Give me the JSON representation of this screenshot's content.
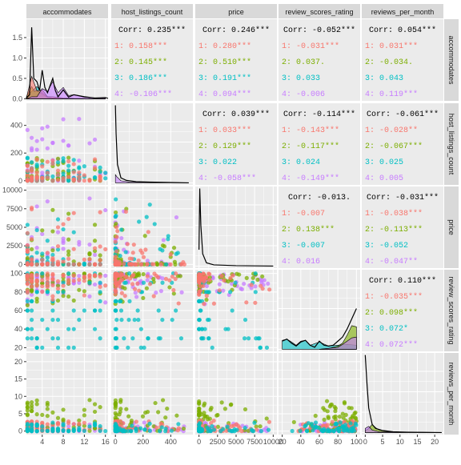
{
  "chart_data": {
    "type": "scatter",
    "title": "",
    "variables": [
      "accommodates",
      "host_listings_count",
      "price",
      "review_scores_rating",
      "reviews_per_month"
    ],
    "colors": {
      "1": "#F8766D",
      "2": "#7CAE00",
      "3": "#00BFC4",
      "4": "#C77CFF",
      "overall": "#000000",
      "panel_bg": "#EBEBEB",
      "strip_bg": "#D9D9D9"
    },
    "group_labels": [
      "1",
      "2",
      "3",
      "4"
    ],
    "axes": {
      "accommodates": {
        "range": [
          1,
          16.5
        ],
        "ticks": [
          4,
          8,
          12,
          16
        ],
        "tick_labels": [
          "4",
          "8",
          "12",
          "16"
        ]
      },
      "host_listings_count": {
        "range": [
          -30,
          560
        ],
        "ticks": [
          0,
          200,
          400
        ],
        "tick_labels": [
          "0",
          "200",
          "400"
        ]
      },
      "price": {
        "range": [
          -500,
          10500
        ],
        "ticks": [
          0,
          2500,
          5000,
          7500,
          10000
        ],
        "tick_labels": [
          "0",
          "2500",
          "5000",
          "7500",
          "10000"
        ]
      },
      "review_scores_rating": {
        "range": [
          16,
          104
        ],
        "ticks": [
          20,
          40,
          60,
          80,
          100
        ],
        "tick_labels": [
          "20",
          "40",
          "60",
          "80",
          "100"
        ]
      },
      "reviews_per_month": {
        "range": [
          -1,
          22.5
        ],
        "ticks": [
          0,
          5,
          10,
          15,
          20
        ],
        "tick_labels": [
          "0",
          "5",
          "10",
          "15",
          "20"
        ]
      },
      "density_y": {
        "range": [
          -0.05,
          1.95
        ],
        "ticks": [
          0,
          0.5,
          1.0,
          1.5
        ],
        "tick_labels": [
          "0.0",
          "0.5",
          "1.0",
          "1.5"
        ]
      }
    },
    "correlations": [
      {
        "row": "accommodates",
        "col": "host_listings_count",
        "overall": "Corr: 0.235***",
        "groups": [
          "1: 0.158***",
          "2: 0.145***",
          "3: 0.186***",
          "4: -0.106***"
        ]
      },
      {
        "row": "accommodates",
        "col": "price",
        "overall": "Corr: 0.246***",
        "groups": [
          "1: 0.280***",
          "2: 0.510***",
          "3: 0.191***",
          "4: 0.094***"
        ]
      },
      {
        "row": "accommodates",
        "col": "review_scores_rating",
        "overall": "Corr: -0.052***",
        "groups": [
          "1: -0.031***",
          "2: 0.037.",
          "3: 0.033",
          "4: -0.006"
        ]
      },
      {
        "row": "accommodates",
        "col": "reviews_per_month",
        "overall": "Corr: 0.054***",
        "groups": [
          "1: 0.031***",
          "2: -0.034.",
          "3: 0.043",
          "4: 0.119***"
        ]
      },
      {
        "row": "host_listings_count",
        "col": "price",
        "overall": "Corr: 0.039***",
        "groups": [
          "1: 0.033***",
          "2: 0.129***",
          "3: 0.022",
          "4: -0.058***"
        ]
      },
      {
        "row": "host_listings_count",
        "col": "review_scores_rating",
        "overall": "Corr: -0.114***",
        "groups": [
          "1: -0.143***",
          "2: -0.117***",
          "3: 0.024",
          "4: -0.149***"
        ]
      },
      {
        "row": "host_listings_count",
        "col": "reviews_per_month",
        "overall": "Corr: -0.061***",
        "groups": [
          "1: -0.028**",
          "2: -0.067***",
          "3: 0.025",
          "4: 0.005"
        ]
      },
      {
        "row": "price",
        "col": "review_scores_rating",
        "overall": "Corr: -0.013.",
        "groups": [
          "1: -0.007",
          "2: 0.138***",
          "3: -0.007",
          "4: 0.016"
        ]
      },
      {
        "row": "price",
        "col": "reviews_per_month",
        "overall": "Corr: -0.031***",
        "groups": [
          "1: -0.038***",
          "2: -0.113***",
          "3: -0.052",
          "4: -0.047**"
        ]
      },
      {
        "row": "review_scores_rating",
        "col": "reviews_per_month",
        "overall": "Corr: 0.110***",
        "groups": [
          "1: -0.035***",
          "2: 0.098***",
          "3: 0.072*",
          "4: 0.072***"
        ]
      }
    ],
    "densities": {
      "accommodates": {
        "overall": [
          [
            1,
            0.02
          ],
          [
            1.6,
            0.1
          ],
          [
            2,
            1.75
          ],
          [
            2.4,
            0.5
          ],
          [
            3,
            0.42
          ],
          [
            3.5,
            0.2
          ],
          [
            4,
            0.7
          ],
          [
            4.5,
            0.28
          ],
          [
            5,
            0.15
          ],
          [
            6,
            0.5
          ],
          [
            6.5,
            0.2
          ],
          [
            7,
            0.05
          ],
          [
            8,
            0.22
          ],
          [
            9,
            0.04
          ],
          [
            10,
            0.1
          ],
          [
            12,
            0.05
          ],
          [
            14,
            0.02
          ],
          [
            16,
            0.03
          ],
          [
            16.5,
            0.01
          ]
        ],
        "1": [
          [
            1,
            0.02
          ],
          [
            2,
            0.55
          ],
          [
            3,
            0.2
          ],
          [
            4,
            0.22
          ],
          [
            5,
            0.05
          ],
          [
            6,
            0.05
          ],
          [
            8,
            0.02
          ],
          [
            10,
            0.01
          ],
          [
            16,
            0
          ]
        ],
        "2": [
          [
            1,
            0.05
          ],
          [
            2,
            0.3
          ],
          [
            2.5,
            0.18
          ],
          [
            3,
            0.2
          ],
          [
            4,
            0.12
          ],
          [
            5,
            0.03
          ],
          [
            6,
            0.02
          ],
          [
            8,
            0
          ],
          [
            16,
            0
          ]
        ],
        "3": [
          [
            1,
            0.04
          ],
          [
            2,
            0.18
          ],
          [
            3,
            0.3
          ],
          [
            4,
            0.15
          ],
          [
            5,
            0.05
          ],
          [
            6,
            0.02
          ],
          [
            8,
            0
          ],
          [
            16,
            0
          ]
        ],
        "4": [
          [
            1,
            0
          ],
          [
            2,
            0.05
          ],
          [
            3,
            0.05
          ],
          [
            4,
            0.25
          ],
          [
            5,
            0.18
          ],
          [
            6,
            0.42
          ],
          [
            7,
            0.15
          ],
          [
            8,
            0.28
          ],
          [
            9,
            0.08
          ],
          [
            10,
            0.1
          ],
          [
            12,
            0.04
          ],
          [
            14,
            0.02
          ],
          [
            16,
            0.02
          ]
        ]
      },
      "host_listings_count": {
        "overall": [
          [
            0,
            1.9
          ],
          [
            5,
            1.2
          ],
          [
            15,
            0.45
          ],
          [
            40,
            0.12
          ],
          [
            80,
            0.06
          ],
          [
            150,
            0.03
          ],
          [
            250,
            0.02
          ],
          [
            400,
            0.01
          ],
          [
            530,
            0
          ]
        ],
        "4": [
          [
            0,
            0.2
          ],
          [
            10,
            0.15
          ],
          [
            40,
            0.05
          ],
          [
            100,
            0.02
          ],
          [
            530,
            0
          ]
        ]
      },
      "price": {
        "overall": [
          [
            0,
            0.4
          ],
          [
            100,
            1.9
          ],
          [
            250,
            1.0
          ],
          [
            500,
            0.3
          ],
          [
            1000,
            0.08
          ],
          [
            2000,
            0.03
          ],
          [
            5000,
            0.01
          ],
          [
            10000,
            0
          ]
        ]
      },
      "review_scores_rating": {
        "overall": [
          [
            20,
            0.2
          ],
          [
            25,
            0.25
          ],
          [
            30,
            0.15
          ],
          [
            35,
            0.08
          ],
          [
            40,
            0.18
          ],
          [
            45,
            0.22
          ],
          [
            50,
            0.1
          ],
          [
            55,
            0.05
          ],
          [
            60,
            0.2
          ],
          [
            65,
            0.1
          ],
          [
            70,
            0.08
          ],
          [
            75,
            0.1
          ],
          [
            80,
            0.2
          ],
          [
            85,
            0.3
          ],
          [
            90,
            0.5
          ],
          [
            95,
            0.75
          ],
          [
            100,
            1.0
          ]
        ],
        "3": [
          [
            20,
            0.22
          ],
          [
            25,
            0.25
          ],
          [
            30,
            0.18
          ],
          [
            35,
            0.1
          ],
          [
            40,
            0.2
          ],
          [
            45,
            0.22
          ],
          [
            50,
            0.1
          ],
          [
            60,
            0.18
          ],
          [
            70,
            0.08
          ],
          [
            80,
            0.1
          ],
          [
            90,
            0.12
          ],
          [
            100,
            0.1
          ]
        ],
        "2": [
          [
            60,
            0
          ],
          [
            70,
            0.02
          ],
          [
            80,
            0.08
          ],
          [
            85,
            0.15
          ],
          [
            90,
            0.35
          ],
          [
            95,
            0.58
          ],
          [
            100,
            0.55
          ]
        ],
        "4": [
          [
            60,
            0
          ],
          [
            80,
            0.05
          ],
          [
            85,
            0.12
          ],
          [
            90,
            0.2
          ],
          [
            95,
            0.28
          ],
          [
            100,
            0.3
          ]
        ]
      },
      "reviews_per_month": {
        "overall": [
          [
            0,
            1.9
          ],
          [
            0.5,
            1.2
          ],
          [
            1,
            0.6
          ],
          [
            2,
            0.2
          ],
          [
            3,
            0.1
          ],
          [
            5,
            0.05
          ],
          [
            8,
            0.02
          ],
          [
            12,
            0.01
          ],
          [
            22,
            0
          ]
        ],
        "2": [
          [
            0,
            0.05
          ],
          [
            1,
            0.1
          ],
          [
            2,
            0.2
          ],
          [
            3,
            0.12
          ],
          [
            4,
            0.06
          ],
          [
            6,
            0.03
          ],
          [
            10,
            0.01
          ],
          [
            22,
            0
          ]
        ],
        "4": [
          [
            0,
            0.1
          ],
          [
            1,
            0.15
          ],
          [
            2,
            0.06
          ],
          [
            4,
            0.02
          ],
          [
            22,
            0
          ]
        ]
      }
    },
    "legend": "none",
    "grid": true
  }
}
